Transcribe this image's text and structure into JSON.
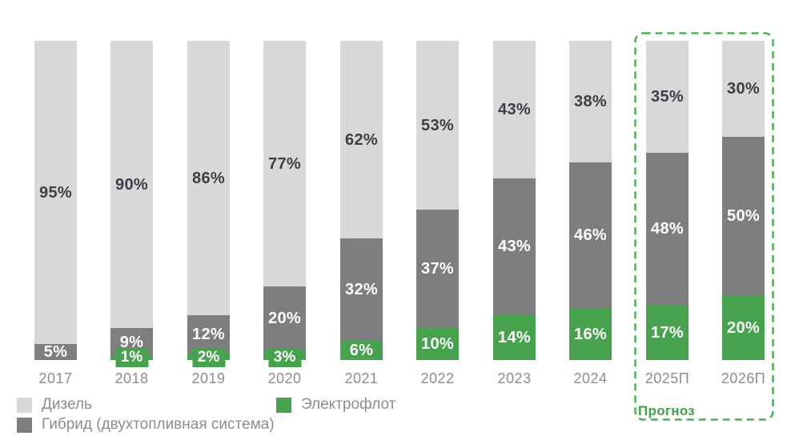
{
  "chart_data": {
    "type": "bar",
    "stacked": true,
    "unit": "%",
    "title": "",
    "grid": false,
    "ylim": [
      0,
      100
    ],
    "legend_position": "bottom-left",
    "stack_order": "top-to-bottom",
    "categories": [
      "2017",
      "2018",
      "2019",
      "2020",
      "2021",
      "2022",
      "2023",
      "2024",
      "2025П",
      "2026П"
    ],
    "series": [
      {
        "key": "diesel",
        "name": "Дизель",
        "color": "#d8d8d8",
        "values": [
          95,
          90,
          86,
          77,
          62,
          53,
          43,
          38,
          35,
          30
        ]
      },
      {
        "key": "hybrid",
        "name": "Гибрид (двухтопливная система)",
        "color": "#7e7e7e",
        "values": [
          5,
          9,
          12,
          20,
          32,
          37,
          43,
          46,
          48,
          50
        ]
      },
      {
        "key": "electric",
        "name": "Электрофлот",
        "color": "#46a24c",
        "values": [
          0,
          1,
          2,
          3,
          6,
          10,
          14,
          16,
          17,
          20
        ]
      }
    ],
    "forecast": {
      "label": "Прогноз",
      "categories": [
        "2025П",
        "2026П"
      ]
    }
  },
  "colors": {
    "label_dark": "#3e3e46",
    "label_light": "#ffffff",
    "axis_text": "#8d8d8d",
    "forecast_border": "#47b354",
    "forecast_label": "#3fa246"
  }
}
